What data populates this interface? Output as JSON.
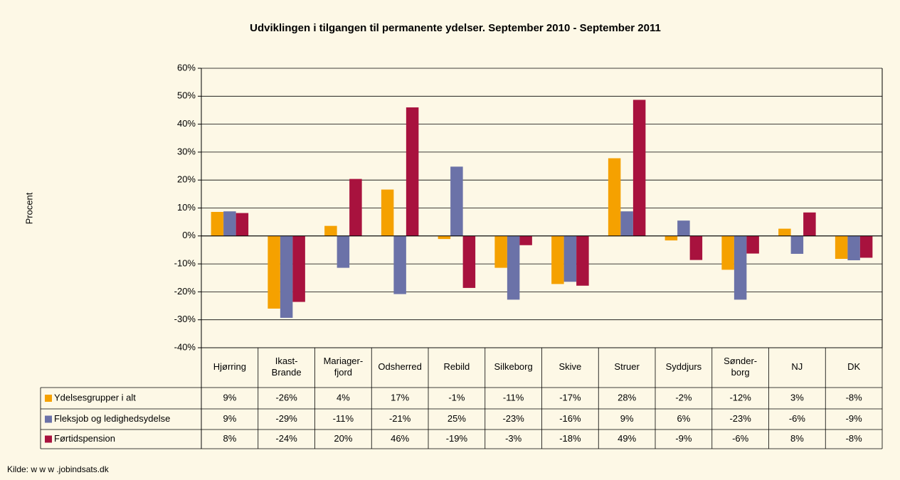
{
  "chart_data": {
    "type": "bar",
    "title": "Udviklingen i tilgangen til permanente ydelser. September 2010 - September 2011",
    "y_label": "Procent",
    "source": "Kilde: w w w .jobindsats.dk",
    "categories": [
      "Hjørring",
      "Ikast-\nBrande",
      "Mariager-\nfjord",
      "Odsherred",
      "Rebild",
      "Silkeborg",
      "Skive",
      "Struer",
      "Syddjurs",
      "Sønder-\nborg",
      "NJ",
      "DK"
    ],
    "series": [
      {
        "name": "Ydelsesgrupper i alt",
        "color": "#f5a100",
        "values": [
          8.6,
          -26,
          3.6,
          16.6,
          -1.1,
          -11.4,
          -17.2,
          27.8,
          -1.6,
          -12.1,
          2.6,
          -8.2
        ],
        "value_labels": [
          "9%",
          "-26%",
          "4%",
          "17%",
          "-1%",
          "-11%",
          "-17%",
          "28%",
          "-2%",
          "-12%",
          "3%",
          "-8%"
        ]
      },
      {
        "name": "Fleksjob og ledighedsydelse",
        "color": "#6b72a8",
        "values": [
          8.8,
          -29.3,
          -11.4,
          -20.8,
          24.8,
          -22.8,
          -16.4,
          8.8,
          5.5,
          -22.8,
          -6.4,
          -8.7
        ],
        "value_labels": [
          "9%",
          "-29%",
          "-11%",
          "-21%",
          "25%",
          "-23%",
          "-16%",
          "9%",
          "6%",
          "-23%",
          "-6%",
          "-9%"
        ]
      },
      {
        "name": "Førtidspension",
        "color": "#a8123e",
        "values": [
          8.2,
          -23.6,
          20.4,
          46,
          -18.6,
          -3.3,
          -17.8,
          48.7,
          -8.6,
          -6.3,
          8.4,
          -7.8
        ],
        "value_labels": [
          "8%",
          "-24%",
          "20%",
          "46%",
          "-19%",
          "-3%",
          "-18%",
          "49%",
          "-9%",
          "-6%",
          "8%",
          "-8%"
        ]
      }
    ],
    "ylim": [
      -40,
      60
    ],
    "yticks": [
      {
        "value": -40,
        "label": "-40%"
      },
      {
        "value": -30,
        "label": "-30%"
      },
      {
        "value": -20,
        "label": "-20%"
      },
      {
        "value": -10,
        "label": "-10%"
      },
      {
        "value": 0,
        "label": "0%"
      },
      {
        "value": 10,
        "label": "10%"
      },
      {
        "value": 20,
        "label": "20%"
      },
      {
        "value": 30,
        "label": "30%"
      },
      {
        "value": 40,
        "label": "40%"
      },
      {
        "value": 50,
        "label": "50%"
      },
      {
        "value": 60,
        "label": "60%"
      }
    ],
    "grid": true
  }
}
